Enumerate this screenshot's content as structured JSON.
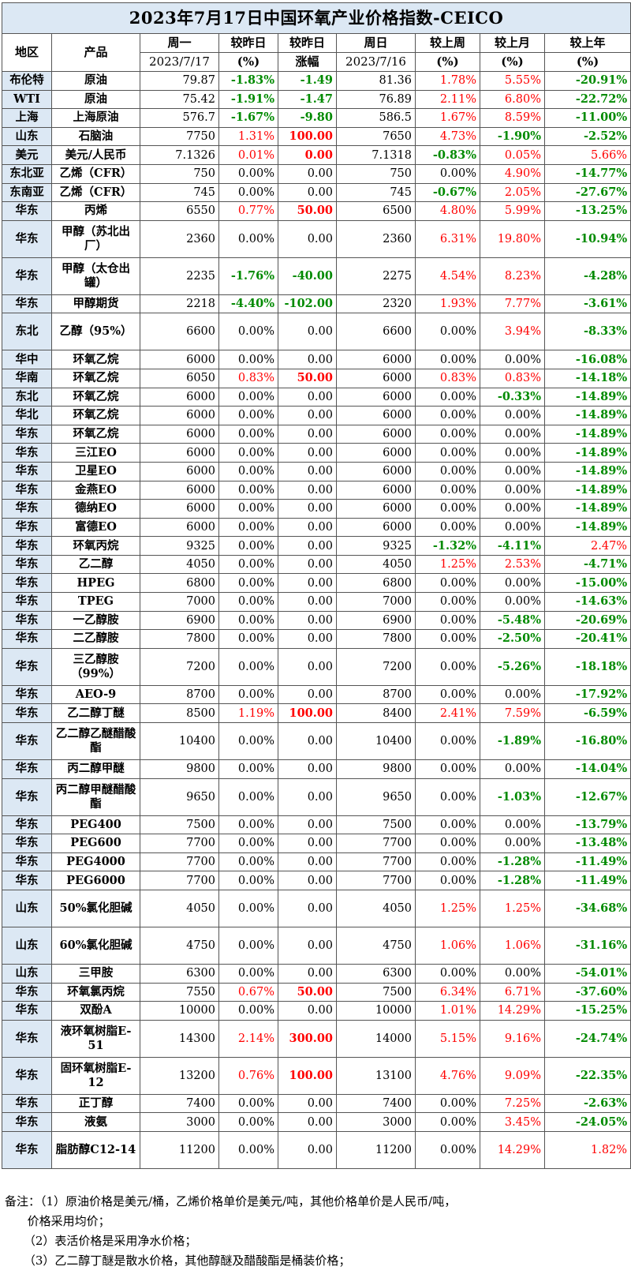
{
  "title": "2023年7月17日中国环氧产业价格指数-CEICO",
  "header": {
    "region": "地区",
    "product": "产品",
    "mon": "周一",
    "mon_date": "2023/7/17",
    "dod": "较昨日",
    "dod_unit": "(%)",
    "dod_chg": "较昨日",
    "dod_chg_unit": "涨幅",
    "sun": "周日",
    "sun_date": "2023/7/16",
    "wow": "较上周",
    "wow_unit": "(%)",
    "mom": "较上月",
    "mom_unit": "(%)",
    "yoy": "较上年",
    "yoy_unit": "(%)"
  },
  "rows": [
    {
      "region": "布伦特",
      "product": "原油",
      "mon": "79.87",
      "dod": "-1.83%",
      "chg": "-1.49",
      "sun": "81.36",
      "wow": "1.78%",
      "mom": "5.55%",
      "yoy": "-20.91%"
    },
    {
      "region": "WTI",
      "product": "原油",
      "mon": "75.42",
      "dod": "-1.91%",
      "chg": "-1.47",
      "sun": "76.89",
      "wow": "2.11%",
      "mom": "6.80%",
      "yoy": "-22.72%"
    },
    {
      "region": "上海",
      "product": "上海原油",
      "mon": "576.7",
      "dod": "-1.67%",
      "chg": "-9.80",
      "sun": "586.5",
      "wow": "1.67%",
      "mom": "8.59%",
      "yoy": "-11.00%"
    },
    {
      "region": "山东",
      "product": "石脑油",
      "mon": "7750",
      "dod": "1.31%",
      "chg": "100.00",
      "sun": "7650",
      "wow": "4.73%",
      "mom": "-1.90%",
      "yoy": "-2.52%"
    },
    {
      "region": "美元",
      "product": "美元/人民币",
      "mon": "7.1326",
      "dod": "0.01%",
      "chg": "0.00",
      "sun": "7.1318",
      "wow": "-0.83%",
      "mom": "0.05%",
      "yoy": "5.66%",
      "chg_red": true
    },
    {
      "region": "东北亚",
      "product": "乙烯（CFR）",
      "mon": "750",
      "dod": "0.00%",
      "chg": "0.00",
      "sun": "750",
      "wow": "0.00%",
      "mom": "4.90%",
      "yoy": "-14.77%"
    },
    {
      "region": "东南亚",
      "product": "乙烯（CFR）",
      "mon": "745",
      "dod": "0.00%",
      "chg": "0.00",
      "sun": "745",
      "wow": "-0.67%",
      "mom": "2.05%",
      "yoy": "-27.67%"
    },
    {
      "region": "华东",
      "product": "丙烯",
      "mon": "6550",
      "dod": "0.77%",
      "chg": "50.00",
      "sun": "6500",
      "wow": "4.80%",
      "mom": "5.99%",
      "yoy": "-13.25%"
    },
    {
      "region": "华东",
      "product": "甲醇（苏北出厂）",
      "mon": "2360",
      "dod": "0.00%",
      "chg": "0.00",
      "sun": "2360",
      "wow": "6.31%",
      "mom": "19.80%",
      "yoy": "-10.94%",
      "tall": true
    },
    {
      "region": "华东",
      "product": "甲醇（太仓出罐）",
      "mon": "2235",
      "dod": "-1.76%",
      "chg": "-40.00",
      "sun": "2275",
      "wow": "4.54%",
      "mom": "8.23%",
      "yoy": "-4.28%",
      "tall": true
    },
    {
      "region": "华东",
      "product": "甲醇期货",
      "mon": "2218",
      "dod": "-4.40%",
      "chg": "-102.00",
      "sun": "2320",
      "wow": "1.93%",
      "mom": "7.77%",
      "yoy": "-3.61%"
    },
    {
      "region": "东北",
      "product": "乙醇（95%）",
      "mon": "6600",
      "dod": "0.00%",
      "chg": "0.00",
      "sun": "6600",
      "wow": "0.00%",
      "mom": "3.94%",
      "yoy": "-8.33%",
      "tall": true
    },
    {
      "region": "华中",
      "product": "环氧乙烷",
      "mon": "6000",
      "dod": "0.00%",
      "chg": "0.00",
      "sun": "6000",
      "wow": "0.00%",
      "mom": "0.00%",
      "yoy": "-16.08%"
    },
    {
      "region": "华南",
      "product": "环氧乙烷",
      "mon": "6050",
      "dod": "0.83%",
      "chg": "50.00",
      "sun": "6000",
      "wow": "0.83%",
      "mom": "0.83%",
      "yoy": "-14.18%"
    },
    {
      "region": "东北",
      "product": "环氧乙烷",
      "mon": "6000",
      "dod": "0.00%",
      "chg": "0.00",
      "sun": "6000",
      "wow": "0.00%",
      "mom": "-0.33%",
      "yoy": "-14.89%"
    },
    {
      "region": "华北",
      "product": "环氧乙烷",
      "mon": "6000",
      "dod": "0.00%",
      "chg": "0.00",
      "sun": "6000",
      "wow": "0.00%",
      "mom": "0.00%",
      "yoy": "-14.89%"
    },
    {
      "region": "华东",
      "product": "环氧乙烷",
      "mon": "6000",
      "dod": "0.00%",
      "chg": "0.00",
      "sun": "6000",
      "wow": "0.00%",
      "mom": "0.00%",
      "yoy": "-14.89%"
    },
    {
      "region": "华东",
      "product": "三江EO",
      "mon": "6000",
      "dod": "0.00%",
      "chg": "0.00",
      "sun": "6000",
      "wow": "0.00%",
      "mom": "0.00%",
      "yoy": "-14.89%"
    },
    {
      "region": "华东",
      "product": "卫星EO",
      "mon": "6000",
      "dod": "0.00%",
      "chg": "0.00",
      "sun": "6000",
      "wow": "0.00%",
      "mom": "0.00%",
      "yoy": "-14.89%"
    },
    {
      "region": "华东",
      "product": "金燕EO",
      "mon": "6000",
      "dod": "0.00%",
      "chg": "0.00",
      "sun": "6000",
      "wow": "0.00%",
      "mom": "0.00%",
      "yoy": "-14.89%"
    },
    {
      "region": "华东",
      "product": "德纳EO",
      "mon": "6000",
      "dod": "0.00%",
      "chg": "0.00",
      "sun": "6000",
      "wow": "0.00%",
      "mom": "0.00%",
      "yoy": "-14.89%"
    },
    {
      "region": "华东",
      "product": "富德EO",
      "mon": "6000",
      "dod": "0.00%",
      "chg": "0.00",
      "sun": "6000",
      "wow": "0.00%",
      "mom": "0.00%",
      "yoy": "-14.89%"
    },
    {
      "region": "华东",
      "product": "环氧丙烷",
      "mon": "9325",
      "dod": "0.00%",
      "chg": "0.00",
      "sun": "9325",
      "wow": "-1.32%",
      "mom": "-4.11%",
      "yoy": "2.47%"
    },
    {
      "region": "华东",
      "product": "乙二醇",
      "mon": "4050",
      "dod": "0.00%",
      "chg": "0.00",
      "sun": "4050",
      "wow": "1.25%",
      "mom": "2.53%",
      "yoy": "-4.71%"
    },
    {
      "region": "华东",
      "product": "HPEG",
      "mon": "6800",
      "dod": "0.00%",
      "chg": "0.00",
      "sun": "6800",
      "wow": "0.00%",
      "mom": "0.00%",
      "yoy": "-15.00%"
    },
    {
      "region": "华东",
      "product": "TPEG",
      "mon": "7000",
      "dod": "0.00%",
      "chg": "0.00",
      "sun": "7000",
      "wow": "0.00%",
      "mom": "0.00%",
      "yoy": "-14.63%"
    },
    {
      "region": "华东",
      "product": "一乙醇胺",
      "mon": "6900",
      "dod": "0.00%",
      "chg": "0.00",
      "sun": "6900",
      "wow": "0.00%",
      "mom": "-5.48%",
      "yoy": "-20.69%"
    },
    {
      "region": "华东",
      "product": "二乙醇胺",
      "mon": "7800",
      "dod": "0.00%",
      "chg": "0.00",
      "sun": "7800",
      "wow": "0.00%",
      "mom": "-2.50%",
      "yoy": "-20.41%"
    },
    {
      "region": "华东",
      "product": "三乙醇胺（99%）",
      "mon": "7200",
      "dod": "0.00%",
      "chg": "0.00",
      "sun": "7200",
      "wow": "0.00%",
      "mom": "-5.26%",
      "yoy": "-18.18%",
      "tall": true
    },
    {
      "region": "华东",
      "product": "AEO-9",
      "mon": "8700",
      "dod": "0.00%",
      "chg": "0.00",
      "sun": "8700",
      "wow": "0.00%",
      "mom": "0.00%",
      "yoy": "-17.92%"
    },
    {
      "region": "华东",
      "product": "乙二醇丁醚",
      "mon": "8500",
      "dod": "1.19%",
      "chg": "100.00",
      "sun": "8400",
      "wow": "2.41%",
      "mom": "7.59%",
      "yoy": "-6.59%"
    },
    {
      "region": "华东",
      "product": "乙二醇乙醚醋酸酯",
      "mon": "10400",
      "dod": "0.00%",
      "chg": "0.00",
      "sun": "10400",
      "wow": "0.00%",
      "mom": "-1.89%",
      "yoy": "-16.80%",
      "tall": true
    },
    {
      "region": "华东",
      "product": "丙二醇甲醚",
      "mon": "9800",
      "dod": "0.00%",
      "chg": "0.00",
      "sun": "9800",
      "wow": "0.00%",
      "mom": "0.00%",
      "yoy": "-14.04%"
    },
    {
      "region": "华东",
      "product": "丙二醇甲醚醋酸酯",
      "mon": "9650",
      "dod": "0.00%",
      "chg": "0.00",
      "sun": "9650",
      "wow": "0.00%",
      "mom": "-1.03%",
      "yoy": "-12.67%",
      "tall": true
    },
    {
      "region": "华东",
      "product": "PEG400",
      "mon": "7500",
      "dod": "0.00%",
      "chg": "0.00",
      "sun": "7500",
      "wow": "0.00%",
      "mom": "0.00%",
      "yoy": "-13.79%"
    },
    {
      "region": "华东",
      "product": "PEG600",
      "mon": "7700",
      "dod": "0.00%",
      "chg": "0.00",
      "sun": "7700",
      "wow": "0.00%",
      "mom": "0.00%",
      "yoy": "-13.48%"
    },
    {
      "region": "华东",
      "product": "PEG4000",
      "mon": "7700",
      "dod": "0.00%",
      "chg": "0.00",
      "sun": "7700",
      "wow": "0.00%",
      "mom": "-1.28%",
      "yoy": "-11.49%"
    },
    {
      "region": "华东",
      "product": "PEG6000",
      "mon": "7700",
      "dod": "0.00%",
      "chg": "0.00",
      "sun": "7700",
      "wow": "0.00%",
      "mom": "-1.28%",
      "yoy": "-11.49%"
    },
    {
      "region": "山东",
      "product": "50%氯化胆碱",
      "mon": "4050",
      "dod": "0.00%",
      "chg": "0.00",
      "sun": "4050",
      "wow": "1.25%",
      "mom": "1.25%",
      "yoy": "-34.68%",
      "tall": true
    },
    {
      "region": "山东",
      "product": "60%氯化胆碱",
      "mon": "4750",
      "dod": "0.00%",
      "chg": "0.00",
      "sun": "4750",
      "wow": "1.06%",
      "mom": "1.06%",
      "yoy": "-31.16%",
      "tall": true
    },
    {
      "region": "山东",
      "product": "三甲胺",
      "mon": "6300",
      "dod": "0.00%",
      "chg": "0.00",
      "sun": "6300",
      "wow": "0.00%",
      "mom": "0.00%",
      "yoy": "-54.01%"
    },
    {
      "region": "华东",
      "product": "环氧氯丙烷",
      "mon": "7550",
      "dod": "0.67%",
      "chg": "50.00",
      "sun": "7500",
      "wow": "6.34%",
      "mom": "6.71%",
      "yoy": "-37.60%"
    },
    {
      "region": "华东",
      "product": "双酚A",
      "mon": "10000",
      "dod": "0.00%",
      "chg": "0.00",
      "sun": "10000",
      "wow": "1.01%",
      "mom": "14.29%",
      "yoy": "-15.25%"
    },
    {
      "region": "华东",
      "product": "液环氧树脂E-51",
      "mon": "14300",
      "dod": "2.14%",
      "chg": "300.00",
      "sun": "14000",
      "wow": "5.15%",
      "mom": "9.16%",
      "yoy": "-24.74%",
      "tall": true
    },
    {
      "region": "华东",
      "product": "固环氧树脂E-12",
      "mon": "13200",
      "dod": "0.76%",
      "chg": "100.00",
      "sun": "13100",
      "wow": "4.76%",
      "mom": "9.09%",
      "yoy": "-22.35%",
      "tall": true
    },
    {
      "region": "华东",
      "product": "正丁醇",
      "mon": "7400",
      "dod": "0.00%",
      "chg": "0.00",
      "sun": "7400",
      "wow": "0.00%",
      "mom": "7.25%",
      "yoy": "-2.63%"
    },
    {
      "region": "华东",
      "product": "液氨",
      "mon": "3000",
      "dod": "0.00%",
      "chg": "0.00",
      "sun": "3000",
      "wow": "0.00%",
      "mom": "3.45%",
      "yoy": "-24.05%"
    },
    {
      "region": "华东",
      "product": "脂肪醇C12-14",
      "mon": "11200",
      "dod": "0.00%",
      "chg": "0.00",
      "sun": "11200",
      "wow": "0.00%",
      "mom": "14.29%",
      "yoy": "1.82%",
      "tall": true
    }
  ],
  "notes": [
    "备注：（1）原油价格是美元/桶，乙烯价格单价是美元/吨，其他价格单价是人民币/吨，",
    "      价格采用均价；",
    "     （2）表活价格是采用净水价格；",
    "     （3）乙二醇丁醚是散水价格，其他醇醚及醋酸酯是桶装价格；"
  ]
}
